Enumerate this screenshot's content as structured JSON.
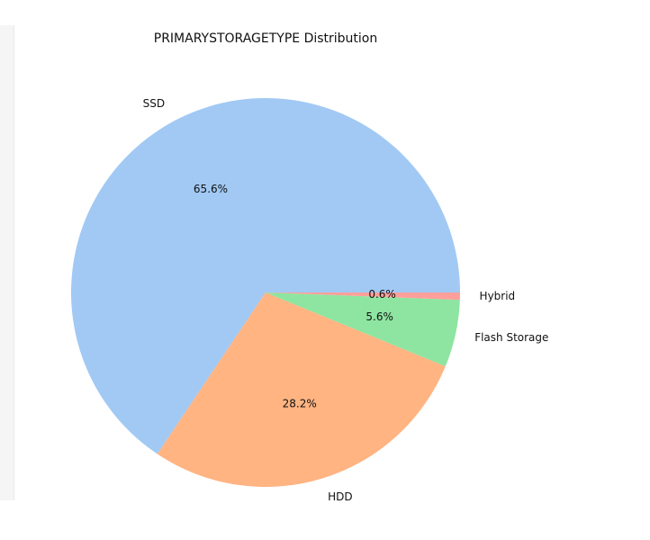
{
  "chart_data": {
    "type": "pie",
    "title": "PRIMARYSTORAGETYPE Distribution",
    "slices": [
      {
        "label": "SSD",
        "value": 65.6,
        "pct_text": "65.6%",
        "color": "#a1c9f4"
      },
      {
        "label": "HDD",
        "value": 28.2,
        "pct_text": "28.2%",
        "color": "#ffb482"
      },
      {
        "label": "Flash Storage",
        "value": 5.6,
        "pct_text": "5.6%",
        "color": "#8de5a1"
      },
      {
        "label": "Hybrid",
        "value": 0.6,
        "pct_text": "0.6%",
        "color": "#ff9f9b"
      }
    ],
    "start_angle_deg": 0,
    "direction": "counterclockwise"
  }
}
